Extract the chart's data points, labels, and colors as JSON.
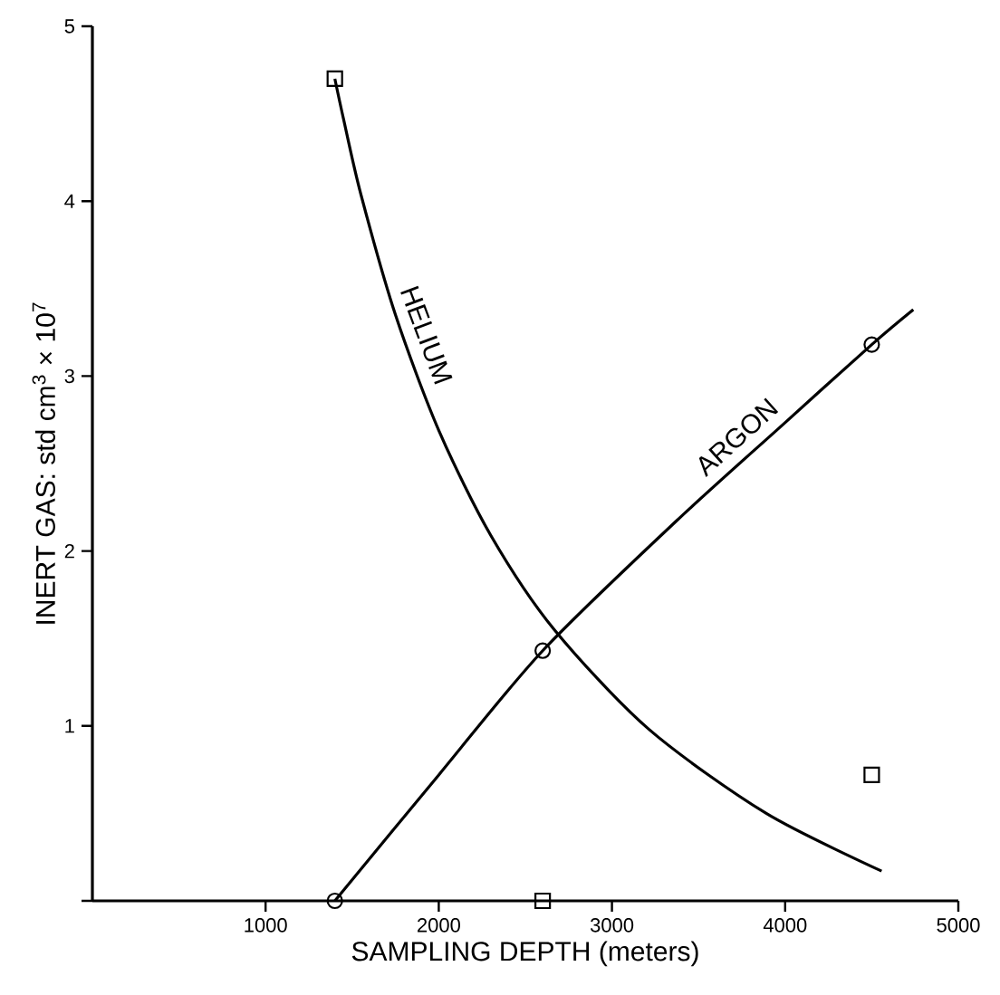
{
  "chart_data": {
    "type": "line",
    "xlabel": "SAMPLING DEPTH (meters)",
    "ylabel": "INERT GAS: std cm$^{3}$ × 10$^{7}$",
    "xlim": [
      0,
      5000
    ],
    "ylim": [
      0,
      5
    ],
    "xticks": [
      1000,
      2000,
      3000,
      4000,
      5000
    ],
    "yticks": [
      {
        "value": 0,
        "label": null
      },
      1,
      2,
      3,
      4,
      5
    ],
    "grid": false,
    "series": [
      {
        "name": "HELIUM",
        "color": "#000000",
        "marker": "none",
        "x": [
          1400,
          1450,
          1550,
          1750,
          2000,
          2300,
          2667,
          3214,
          3891,
          4557
        ],
        "values": [
          4.7,
          4.47,
          4.04,
          3.35,
          2.69,
          2.09,
          1.55,
          0.98,
          0.5,
          0.17
        ]
      },
      {
        "name": "ARGON",
        "color": "#000000",
        "marker": "none",
        "x": [
          1400,
          2000,
          2600,
          3370,
          3995,
          4500,
          4740
        ],
        "values": [
          0,
          0.72,
          1.43,
          2.17,
          2.73,
          3.18,
          3.38
        ]
      },
      {
        "color": "#000000",
        "type": "scatter",
        "marker": "square",
        "x": [
          1400,
          2600,
          4500
        ],
        "values": [
          4.7,
          0,
          0.72
        ]
      },
      {
        "color": "#000000",
        "type": "scatter",
        "marker": "circle",
        "x": [
          1400,
          2600,
          4500
        ],
        "values": [
          0,
          1.43,
          3.18
        ]
      }
    ]
  }
}
